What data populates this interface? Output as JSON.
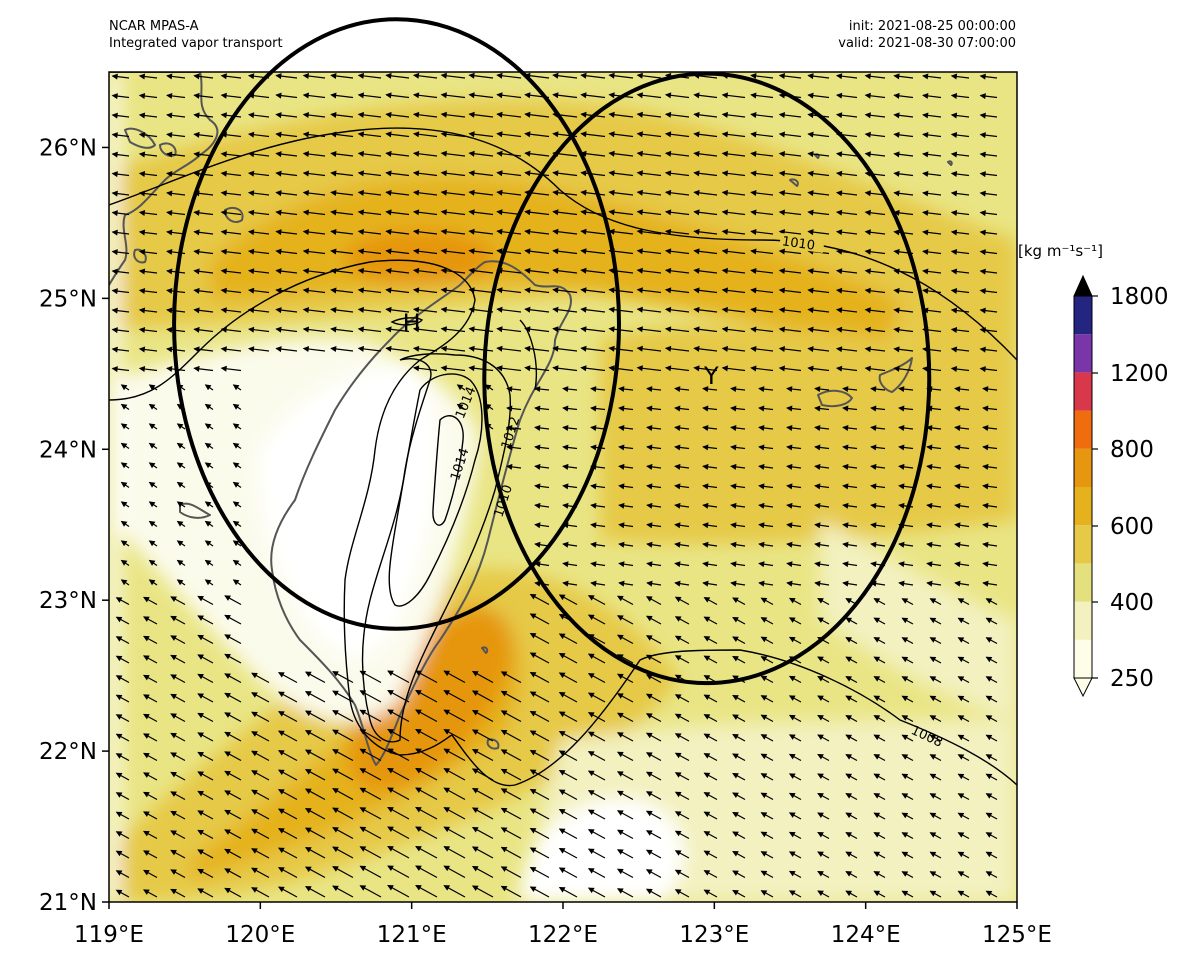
{
  "header": {
    "model": "NCAR MPAS-A",
    "field": "Integrated vapor transport",
    "init": "init: 2021-08-25 00:00:00",
    "valid": "valid: 2021-08-30 07:00:00"
  },
  "axes": {
    "lon_min": 119,
    "lon_max": 125,
    "lat_min": 21,
    "lat_max": 26.5,
    "x_ticks": [
      "119°E",
      "120°E",
      "121°E",
      "122°E",
      "123°E",
      "124°E",
      "125°E"
    ],
    "y_ticks": [
      "21°N",
      "22°N",
      "23°N",
      "24°N",
      "25°N",
      "26°N"
    ]
  },
  "colorbar": {
    "units": "[kg m⁻¹s⁻¹]",
    "tick_labels": [
      "250",
      "400",
      "600",
      "800",
      "1200",
      "1800"
    ],
    "colors": [
      "#fdfde8",
      "#f3f1c0",
      "#e4e07d",
      "#e6c947",
      "#e5b21e",
      "#e6960f",
      "#ef6d0f",
      "#d8384a",
      "#7a36a8",
      "#232581"
    ],
    "extend": "both"
  },
  "pressure_contours": {
    "labels": [
      "1010",
      "1014",
      "1014",
      "1012",
      "1010",
      "1008"
    ]
  },
  "markers": [
    {
      "symbol": "H",
      "lon": 121.0,
      "lat": 24.85
    },
    {
      "symbol": "Y",
      "lon": 122.98,
      "lat": 24.5
    }
  ],
  "circles": [
    {
      "center_lon": 120.9,
      "center_lat": 24.83,
      "radius_deg": 1.47
    },
    {
      "center_lon": 122.95,
      "center_lat": 24.47,
      "radius_deg": 1.47
    }
  ],
  "colors": {
    "coast": "#555555",
    "frame": "#000000",
    "arrow": "#000000"
  }
}
